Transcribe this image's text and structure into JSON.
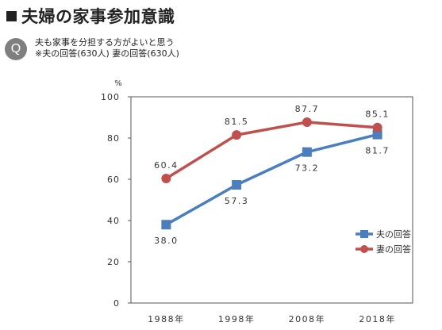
{
  "title": "夫婦の家事参加意識",
  "question": {
    "badge": "Q",
    "line1": "夫も家事を分担する方がよいと思う",
    "line2": "※夫の回答(630人) 妻の回答(630人)"
  },
  "chart_data": {
    "type": "line",
    "categories": [
      "1988年",
      "1998年",
      "2008年",
      "2018年"
    ],
    "ylabel": "%",
    "ylim": [
      0,
      100
    ],
    "yticks": [
      0,
      20,
      40,
      60,
      80,
      100
    ],
    "grid": false,
    "legend_position": "right",
    "series": [
      {
        "name": "夫の回答",
        "values": [
          38.0,
          57.3,
          73.2,
          81.7
        ],
        "color": "#4a7ebf",
        "marker": "square"
      },
      {
        "name": "妻の回答",
        "values": [
          60.4,
          81.5,
          87.7,
          85.1
        ],
        "color": "#c0504d",
        "marker": "circle"
      }
    ]
  }
}
